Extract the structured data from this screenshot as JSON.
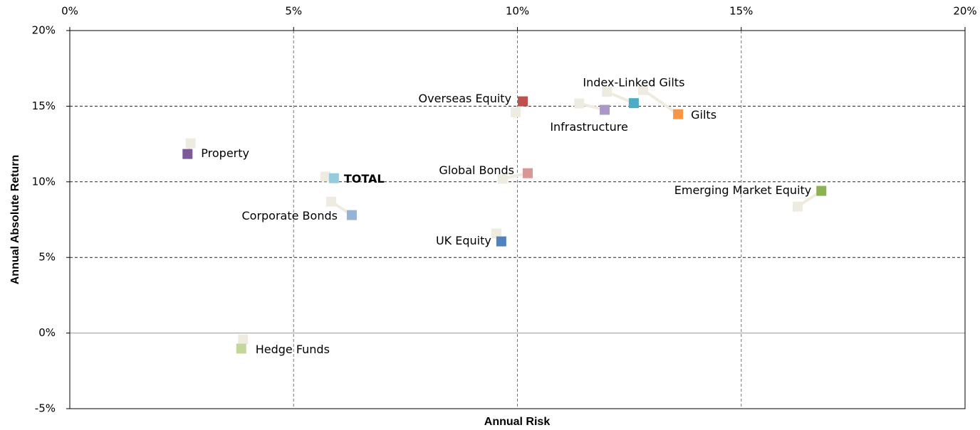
{
  "chart_data": {
    "type": "scatter",
    "x_label": "Annual Risk",
    "y_label": "Annual Absolute Return",
    "xlim": [
      0,
      20
    ],
    "ylim": [
      -5,
      20
    ],
    "xticks": [
      {
        "value": 0,
        "label": "0%"
      },
      {
        "value": 5,
        "label": "5%"
      },
      {
        "value": 10,
        "label": "10%"
      },
      {
        "value": 15,
        "label": "15%"
      },
      {
        "value": 20,
        "label": "20%"
      }
    ],
    "yticks": [
      {
        "value": -5,
        "label": "-5%"
      },
      {
        "value": 0,
        "label": "0%"
      },
      {
        "value": 5,
        "label": "5%"
      },
      {
        "value": 10,
        "label": "10%"
      },
      {
        "value": 15,
        "label": "15%"
      },
      {
        "value": 20,
        "label": "20%"
      }
    ],
    "grid": true,
    "trail_color": "#eeece1",
    "points": [
      {
        "label": "Overseas Equity",
        "color": "#c0504d",
        "x": 10.12,
        "y": 15.32,
        "from_x": 9.96,
        "from_y": 14.6
      },
      {
        "label": "Index-Linked Gilts",
        "color": "#4bacc6",
        "x": 12.6,
        "y": 15.2,
        "from_x": 12.0,
        "from_y": 15.95
      },
      {
        "label": "Gilts",
        "color": "#f79646",
        "x": 13.59,
        "y": 14.47,
        "from_x": 12.81,
        "from_y": 16.07
      },
      {
        "label": "Infrastructure",
        "color": "#a998c8",
        "x": 11.95,
        "y": 14.76,
        "from_x": 11.38,
        "from_y": 15.18
      },
      {
        "label": "Property",
        "color": "#7b5a99",
        "x": 2.63,
        "y": 11.84,
        "from_x": 2.7,
        "from_y": 12.55
      },
      {
        "label": "TOTAL",
        "color": "#93cddd",
        "x": 5.9,
        "y": 10.24,
        "from_x": 5.71,
        "from_y": 10.34
      },
      {
        "label": "Global Bonds",
        "color": "#d99694",
        "x": 10.23,
        "y": 10.57,
        "from_x": 9.67,
        "from_y": 10.2
      },
      {
        "label": "Corporate Bonds",
        "color": "#95b3d7",
        "x": 6.3,
        "y": 7.8,
        "from_x": 5.84,
        "from_y": 8.69
      },
      {
        "label": "UK Equity",
        "color": "#4f81bd",
        "x": 9.64,
        "y": 6.06,
        "from_x": 9.53,
        "from_y": 6.58
      },
      {
        "label": "Emerging Market Equity",
        "color": "#8db255",
        "x": 16.79,
        "y": 9.4,
        "from_x": 16.26,
        "from_y": 8.36
      },
      {
        "label": "Hedge Funds",
        "color": "#c3d69b",
        "x": 3.83,
        "y": -1.03,
        "from_x": 3.87,
        "from_y": -0.42
      }
    ]
  }
}
